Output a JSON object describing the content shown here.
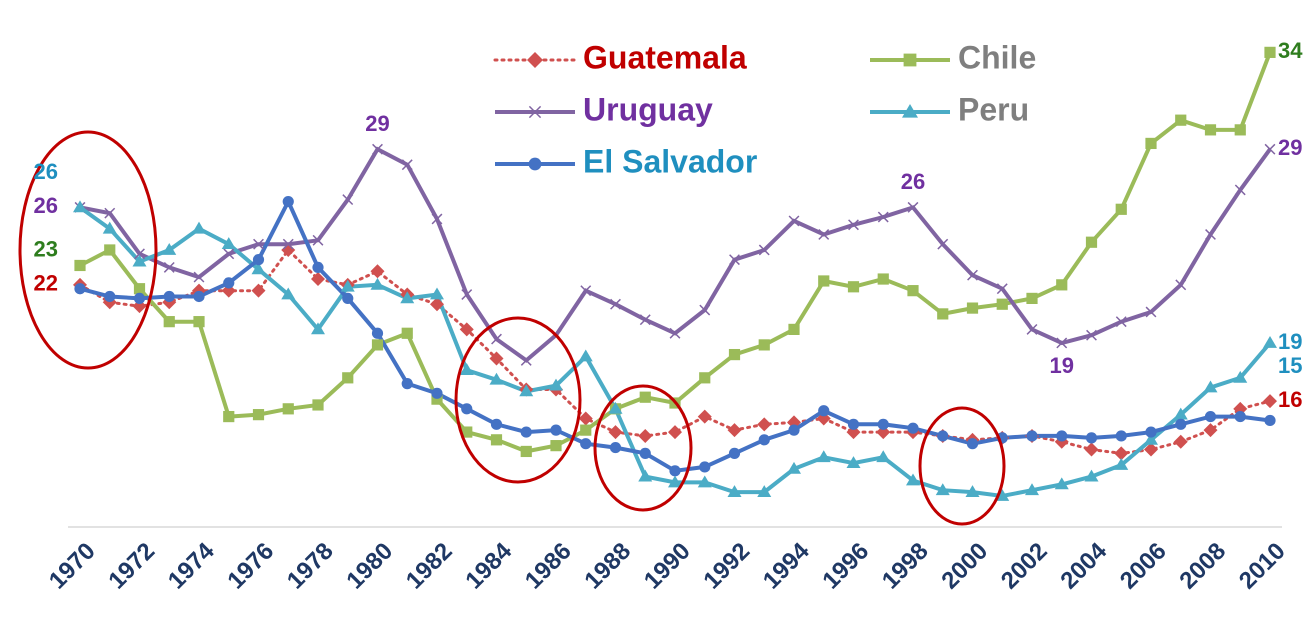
{
  "chart_data": {
    "type": "line",
    "categories": [
      "1970",
      null,
      "1972",
      null,
      "1974",
      null,
      "1976",
      null,
      "1978",
      null,
      "1980",
      null,
      "1982",
      null,
      "1984",
      null,
      "1986",
      null,
      "1988",
      null,
      "1990",
      null,
      "1992",
      null,
      "1994",
      null,
      "1996",
      null,
      "1998",
      null,
      "2000",
      null,
      "2002",
      null,
      "2004",
      null,
      "2006",
      null,
      "2008",
      null,
      "2010"
    ],
    "ylim": [
      9.5,
      35
    ],
    "series": [
      {
        "name": "Guatemala",
        "color": "#d0504f",
        "label_color": "#c00000",
        "legend_color": "#c00000",
        "marker": "diamond",
        "dash": "dotted",
        "label_indices": [
          0,
          40
        ],
        "values": [
          22,
          21.1,
          20.9,
          21.1,
          21.7,
          21.7,
          21.7,
          23.8,
          22.3,
          22,
          22.7,
          21.5,
          21.0,
          19.7,
          18.2,
          16.6,
          16.6,
          15.1,
          14.4,
          14.2,
          14.4,
          15.2,
          14.5,
          14.8,
          14.9,
          15.1,
          14.4,
          14.4,
          14.4,
          14.2,
          14.0,
          14.1,
          14.2,
          13.9,
          13.5,
          13.3,
          13.5,
          13.9,
          14.5,
          15.6,
          16
        ]
      },
      {
        "name": "Chile",
        "color": "#9bbb59",
        "label_color": "#2e7d1e",
        "legend_color": "#7f7f7f",
        "marker": "square",
        "dash": "solid",
        "label_indices": [
          0,
          40
        ],
        "values": [
          23,
          23.8,
          21.8,
          20.1,
          20.1,
          15.2,
          15.3,
          15.6,
          15.8,
          17.2,
          18.9,
          19.5,
          16.1,
          14.4,
          14.0,
          13.4,
          13.7,
          14.5,
          15.6,
          16.2,
          15.9,
          17.2,
          18.4,
          18.9,
          19.7,
          22.2,
          21.9,
          22.3,
          21.7,
          20.5,
          20.8,
          21.0,
          21.3,
          22.0,
          24.2,
          25.9,
          29.3,
          30.5,
          30.0,
          30.0,
          34
        ]
      },
      {
        "name": "Uruguay",
        "color": "#8064a2",
        "label_color": "#7030a0",
        "legend_color": "#7030a0",
        "marker": "cross",
        "dash": "solid",
        "label_indices": [
          0,
          10,
          28,
          33,
          40
        ],
        "values": [
          26,
          25.7,
          23.6,
          22.9,
          22.4,
          23.6,
          24.1,
          24.1,
          24.3,
          26.4,
          29,
          28.2,
          25.4,
          21.5,
          19.2,
          18.1,
          19.4,
          21.7,
          21.0,
          20.2,
          19.5,
          20.7,
          23.3,
          23.8,
          25.3,
          24.6,
          25.1,
          25.5,
          26,
          24.1,
          22.5,
          21.8,
          19.7,
          19,
          19.4,
          20.1,
          20.6,
          22.0,
          24.6,
          26.9,
          29
        ]
      },
      {
        "name": "Peru",
        "color": "#4bacc6",
        "label_color": "#1f8fbf",
        "legend_color": "#7f7f7f",
        "marker": "triangle",
        "dash": "solid",
        "label_indices": [
          0,
          40
        ],
        "values": [
          26,
          24.9,
          23.2,
          23.8,
          24.9,
          24.1,
          22.8,
          21.5,
          19.7,
          21.9,
          22.0,
          21.3,
          21.5,
          17.6,
          17.1,
          16.5,
          16.8,
          18.3,
          15.6,
          12.1,
          11.8,
          11.8,
          11.3,
          11.3,
          12.5,
          13.1,
          12.8,
          13.1,
          11.9,
          11.4,
          11.3,
          11.1,
          11.4,
          11.7,
          12.1,
          12.7,
          14.0,
          15.3,
          16.7,
          17.2,
          19
        ]
      },
      {
        "name": "El Salvador",
        "color": "#4472c4",
        "label_color": "#1f8fbf",
        "legend_color": "#1f8fbf",
        "marker": "circle",
        "dash": "solid",
        "label_indices": [
          40
        ],
        "values": [
          21.8,
          21.4,
          21.3,
          21.4,
          21.4,
          22.1,
          23.3,
          26.3,
          22.9,
          21.3,
          19.5,
          16.9,
          16.4,
          15.6,
          14.8,
          14.4,
          14.5,
          13.8,
          13.6,
          13.3,
          12.4,
          12.6,
          13.3,
          14.0,
          14.5,
          15.5,
          14.8,
          14.8,
          14.6,
          14.2,
          13.8,
          14.1,
          14.2,
          14.2,
          14.1,
          14.2,
          14.4,
          14.8,
          15.2,
          15.2,
          15
        ]
      }
    ]
  }
}
